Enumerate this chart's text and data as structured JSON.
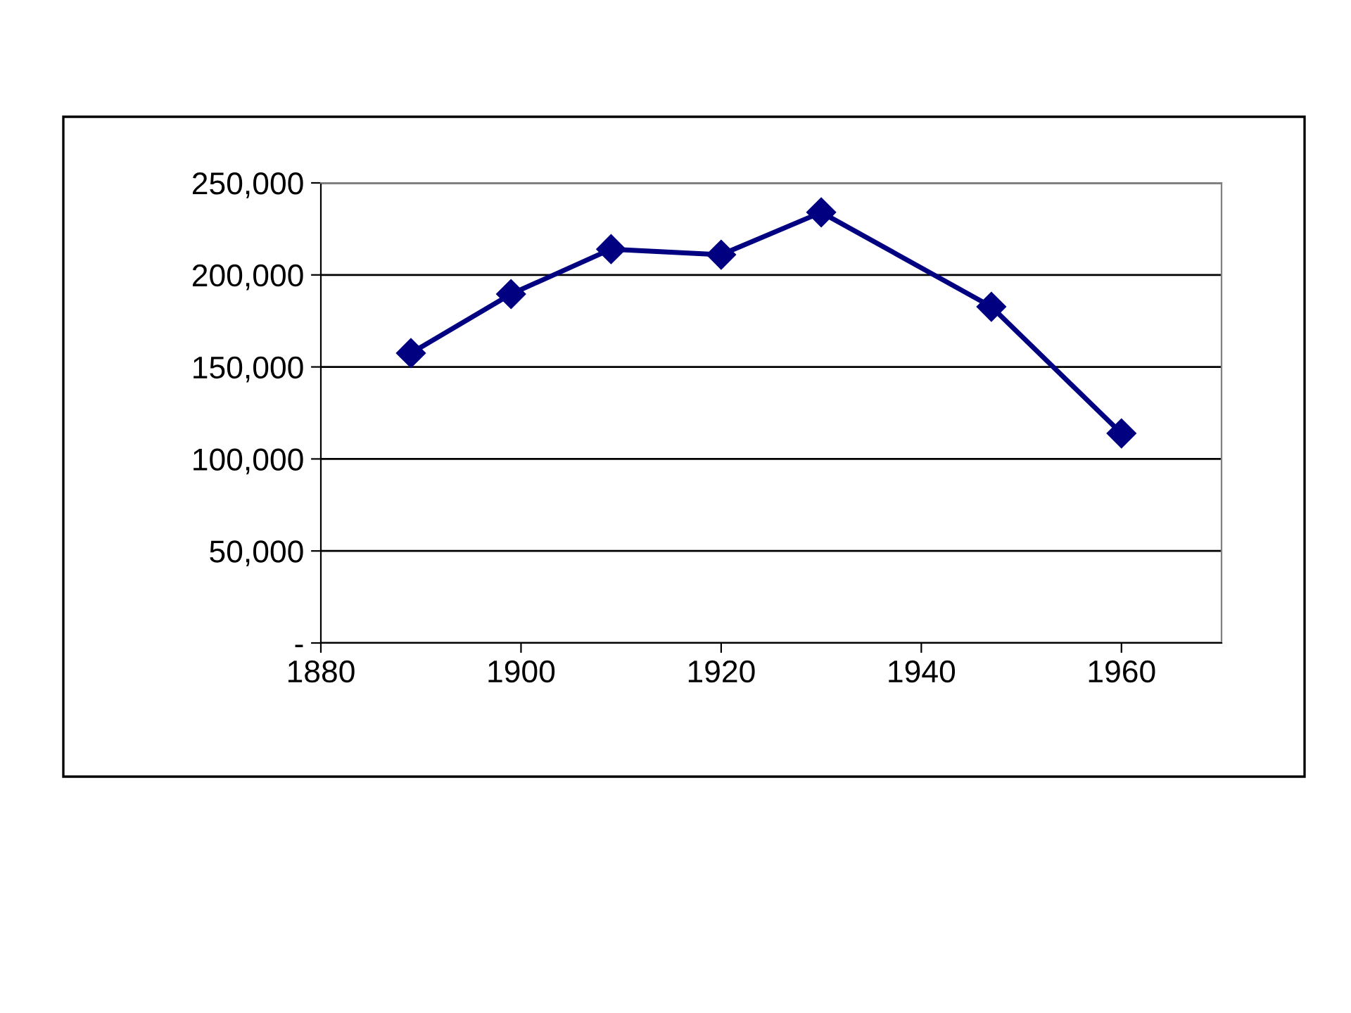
{
  "chart_data": {
    "type": "line",
    "x": [
      1889,
      1899,
      1909,
      1920,
      1930,
      1947,
      1960
    ],
    "series": [
      {
        "color": "#000080",
        "values": [
          157500,
          189600,
          214000,
          211000,
          234000,
          182700,
          113900
        ]
      }
    ],
    "xlim": [
      1880,
      1970
    ],
    "xticks": [
      1880,
      1900,
      1920,
      1940,
      1960
    ],
    "ylim": [
      0,
      250000
    ],
    "yticks": [
      {
        "value": 0,
        "label": "-"
      },
      {
        "value": 50000,
        "label": "50,000"
      },
      {
        "value": 100000,
        "label": "100,000"
      },
      {
        "value": 150000,
        "label": "150,000"
      },
      {
        "value": 200000,
        "label": "200,000"
      },
      {
        "value": 250000,
        "label": "250,000"
      }
    ],
    "grid": "y",
    "marker": "diamond",
    "line_style": "solid",
    "legend": false
  }
}
